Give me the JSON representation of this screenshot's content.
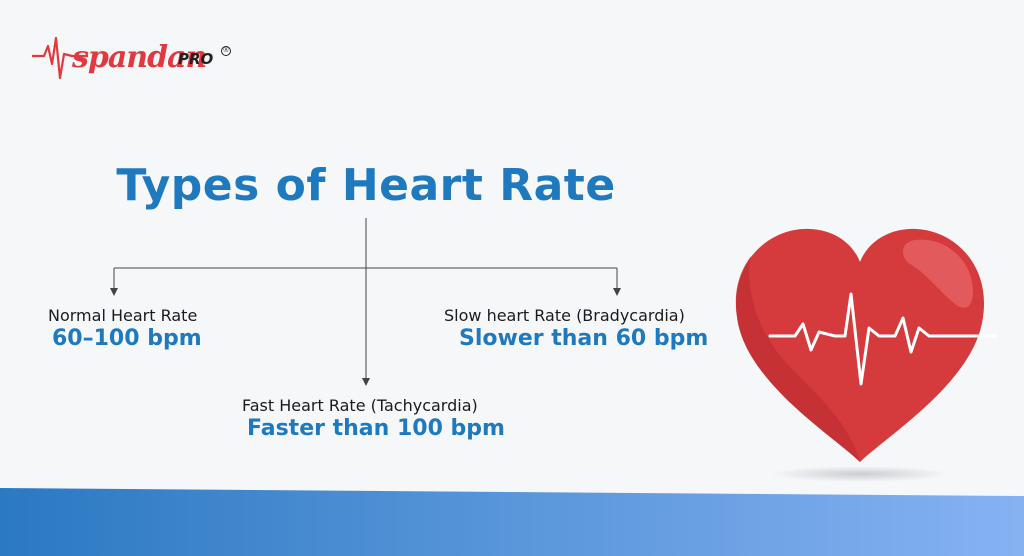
{
  "logo": {
    "brand": "spandan",
    "suffix": "PRO",
    "mark": "®"
  },
  "title": "Types of Heart Rate",
  "branches": {
    "normal": {
      "label": "Normal Heart Rate",
      "value": "60–100 bpm"
    },
    "fast": {
      "label": "Fast Heart Rate (Tachycardia)",
      "value": "Faster than 100 bpm"
    },
    "slow": {
      "label": "Slow heart Rate (Bradycardia)",
      "value": "Slower than 60 bpm"
    }
  },
  "colors": {
    "accent": "#1f79bf",
    "heart": "#d6383a",
    "brand": "#e0393e",
    "band_start": "#2f7fc4",
    "band_end": "#86b2f2"
  },
  "icons": {
    "logo_pulse": "pulse-line-icon",
    "heart": "heart-ecg-icon"
  }
}
